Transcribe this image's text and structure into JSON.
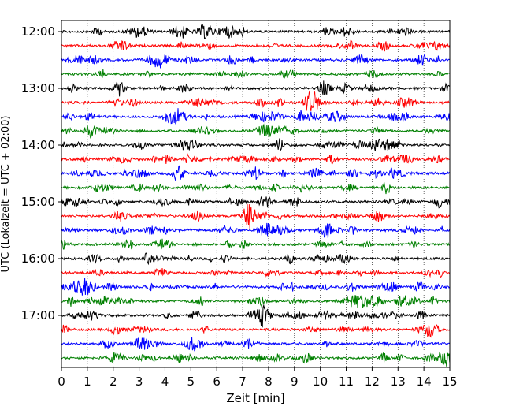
{
  "chart_data": {
    "type": "line",
    "title": "",
    "xlabel": "Zeit  [min]",
    "ylabel": "UTC (Lokalzeit = UTC + 02:00)",
    "xlim": [
      0,
      15
    ],
    "x_ticks": [
      "0",
      "1",
      "2",
      "3",
      "4",
      "5",
      "6",
      "7",
      "8",
      "9",
      "10",
      "11",
      "12",
      "13",
      "14",
      "15"
    ],
    "y_tick_labels": [
      "12:00",
      "13:00",
      "14:00",
      "15:00",
      "16:00",
      "17:00"
    ],
    "grid": "vertical dotted at each minute",
    "series_color_cycle": [
      "#000000",
      "#ff0000",
      "#0000ff",
      "#008000"
    ],
    "rows": [
      {
        "time": "12:00",
        "color": "#000000"
      },
      {
        "time": "12:15",
        "color": "#ff0000"
      },
      {
        "time": "12:30",
        "color": "#0000ff"
      },
      {
        "time": "12:45",
        "color": "#008000"
      },
      {
        "time": "13:00",
        "color": "#000000"
      },
      {
        "time": "13:15",
        "color": "#ff0000"
      },
      {
        "time": "13:30",
        "color": "#0000ff"
      },
      {
        "time": "13:45",
        "color": "#008000"
      },
      {
        "time": "14:00",
        "color": "#000000"
      },
      {
        "time": "14:15",
        "color": "#ff0000"
      },
      {
        "time": "14:30",
        "color": "#0000ff"
      },
      {
        "time": "14:45",
        "color": "#008000"
      },
      {
        "time": "15:00",
        "color": "#000000"
      },
      {
        "time": "15:15",
        "color": "#ff0000"
      },
      {
        "time": "15:30",
        "color": "#0000ff"
      },
      {
        "time": "15:45",
        "color": "#008000"
      },
      {
        "time": "16:00",
        "color": "#000000"
      },
      {
        "time": "16:15",
        "color": "#ff0000"
      },
      {
        "time": "16:30",
        "color": "#0000ff"
      },
      {
        "time": "16:45",
        "color": "#008000"
      },
      {
        "time": "17:00",
        "color": "#000000"
      },
      {
        "time": "17:15",
        "color": "#ff0000"
      },
      {
        "time": "17:30",
        "color": "#0000ff"
      },
      {
        "time": "17:45",
        "color": "#008000"
      }
    ]
  }
}
